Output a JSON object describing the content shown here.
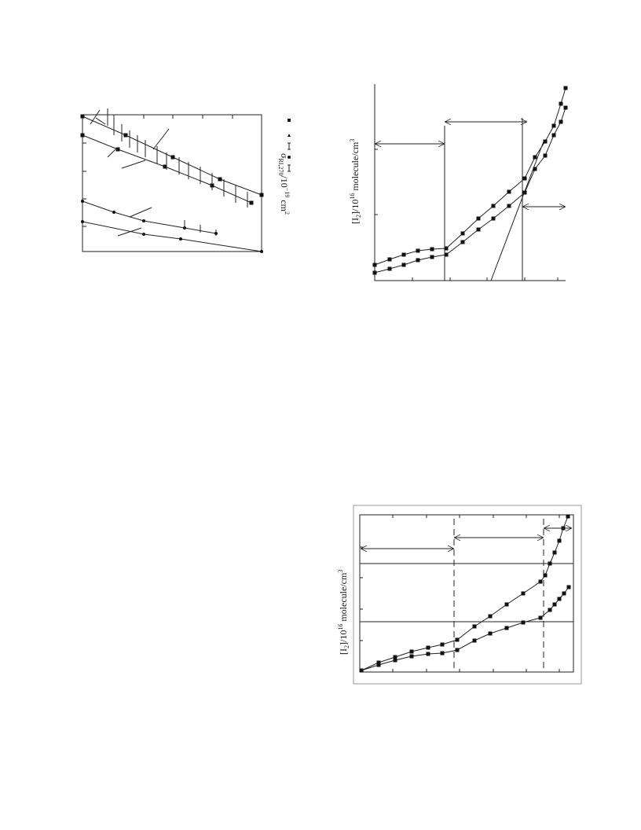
{
  "figures": [
    {
      "y_label": {
        "base": "σ",
        "sub": "RI,270",
        "mid": "/10",
        "sup": "−19",
        "unit": " cm",
        "unit_sup": "2"
      }
    },
    {
      "y_label": {
        "base": "[I",
        "sub": "2",
        "mid": "]/10",
        "sup": "16",
        "unit": " molecule/cm",
        "unit_sup": "3"
      }
    },
    {
      "y_label": {
        "base": "[I",
        "sub": "2",
        "mid": "]/10",
        "sup": "16",
        "unit": " molecule/cm",
        "unit_sup": "3"
      }
    }
  ]
}
